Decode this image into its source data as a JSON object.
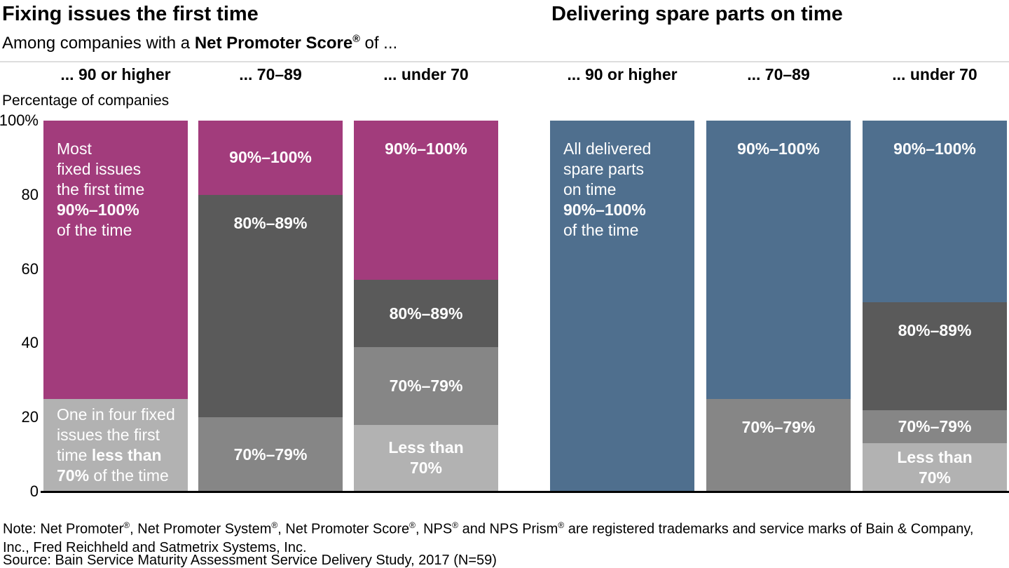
{
  "titles": {
    "left": "Fixing issues the first time",
    "right": "Delivering spare parts on time"
  },
  "subtitle_runs": [
    {
      "t": "Among companies with a "
    },
    {
      "t": "Net Promoter Score",
      "b": true
    },
    {
      "t": "®",
      "b": true,
      "sup": true
    },
    {
      "t": " of ..."
    }
  ],
  "ylabel": "Percentage of companies",
  "colors": {
    "magenta": "#A23C7C",
    "blue": "#4F6F8E",
    "dark_gray": "#5A5A5A",
    "medium_gray": "#868686",
    "light_gray": "#B2B2B2",
    "header_rule": "#DDDDDD",
    "axis": "#000000",
    "segment_text": "#FFFFFF"
  },
  "chart_data": {
    "type": "stacked-bar",
    "unit": "percent of companies",
    "ylim": [
      0,
      100
    ],
    "grid": false,
    "yticks": [
      {
        "value": 100,
        "label": "100%"
      },
      {
        "value": 80,
        "label": "80"
      },
      {
        "value": 60,
        "label": "60"
      },
      {
        "value": 40,
        "label": "40"
      },
      {
        "value": 20,
        "label": "20"
      },
      {
        "value": 0,
        "label": "0"
      }
    ],
    "panels": [
      {
        "title": "Fixing issues the first time",
        "bars": [
          {
            "category": "... 90 or higher",
            "segments": [
              {
                "name": "90%–100%",
                "value": 75,
                "color": "magenta",
                "style": "story",
                "runs": [
                  {
                    "t": "Most\nfixed issues\nthe first time\n"
                  },
                  {
                    "t": "90%–100%",
                    "b": true
                  },
                  {
                    "t": "\nof the time"
                  }
                ]
              },
              {
                "name": "Less than 70%",
                "value": 25,
                "color": "light_gray",
                "style": "story-center",
                "runs": [
                  {
                    "t": "One in four fixed\nissues the first\ntime "
                  },
                  {
                    "t": "less than",
                    "b": true
                  },
                  {
                    "t": "\n"
                  },
                  {
                    "t": "70%",
                    "b": true
                  },
                  {
                    "t": " of the time"
                  }
                ]
              }
            ]
          },
          {
            "category": "... 70–89",
            "segments": [
              {
                "name": "90%–100%",
                "value": 20,
                "color": "magenta",
                "style": "range",
                "runs": [
                  {
                    "t": "90%–100%",
                    "b": true
                  }
                ]
              },
              {
                "name": "80%–89%",
                "value": 60,
                "color": "dark_gray",
                "style": "range",
                "runs": [
                  {
                    "t": "80%–89%",
                    "b": true
                  }
                ]
              },
              {
                "name": "70%–79%",
                "value": 20,
                "color": "medium_gray",
                "style": "range",
                "runs": [
                  {
                    "t": "70%–79%",
                    "b": true
                  }
                ]
              }
            ]
          },
          {
            "category": "... under 70",
            "segments": [
              {
                "name": "90%–100%",
                "value": 43,
                "color": "magenta",
                "style": "range",
                "runs": [
                  {
                    "t": "90%–100%",
                    "b": true
                  }
                ]
              },
              {
                "name": "80%–89%",
                "value": 18,
                "color": "dark_gray",
                "style": "range",
                "runs": [
                  {
                    "t": "80%–89%",
                    "b": true
                  }
                ]
              },
              {
                "name": "70%–79%",
                "value": 21,
                "color": "medium_gray",
                "style": "range",
                "runs": [
                  {
                    "t": "70%–79%",
                    "b": true
                  }
                ]
              },
              {
                "name": "Less than 70%",
                "value": 18,
                "color": "light_gray",
                "style": "range",
                "runs": [
                  {
                    "t": "Less than\n70%",
                    "b": true
                  }
                ]
              }
            ]
          }
        ]
      },
      {
        "title": "Delivering spare parts on time",
        "bars": [
          {
            "category": "... 90 or higher",
            "segments": [
              {
                "name": "90%–100%",
                "value": 100,
                "color": "blue",
                "style": "story",
                "runs": [
                  {
                    "t": "All delivered\nspare parts\non time\n"
                  },
                  {
                    "t": "90%–100%",
                    "b": true
                  },
                  {
                    "t": "\nof the time"
                  }
                ]
              }
            ]
          },
          {
            "category": "... 70–89",
            "segments": [
              {
                "name": "90%–100%",
                "value": 75,
                "color": "blue",
                "style": "range",
                "runs": [
                  {
                    "t": "90%–100%",
                    "b": true
                  }
                ]
              },
              {
                "name": "70%–79%",
                "value": 25,
                "color": "medium_gray",
                "style": "range",
                "runs": [
                  {
                    "t": "70%–79%",
                    "b": true
                  }
                ]
              }
            ]
          },
          {
            "category": "... under 70",
            "segments": [
              {
                "name": "90%–100%",
                "value": 49,
                "color": "blue",
                "style": "range",
                "runs": [
                  {
                    "t": "90%–100%",
                    "b": true
                  }
                ]
              },
              {
                "name": "80%–89%",
                "value": 29,
                "color": "dark_gray",
                "style": "range",
                "runs": [
                  {
                    "t": "80%–89%",
                    "b": true
                  }
                ]
              },
              {
                "name": "70%–79%",
                "value": 9,
                "color": "medium_gray",
                "style": "range",
                "runs": [
                  {
                    "t": "70%–79%",
                    "b": true
                  }
                ]
              },
              {
                "name": "Less than 70%",
                "value": 13,
                "color": "light_gray",
                "style": "range",
                "runs": [
                  {
                    "t": "Less than\n70%",
                    "b": true
                  }
                ]
              }
            ]
          }
        ]
      }
    ]
  },
  "footer": {
    "note_runs": [
      {
        "t": "Note: Net Promoter"
      },
      {
        "t": "®",
        "sup": true
      },
      {
        "t": ", Net Promoter System"
      },
      {
        "t": "®",
        "sup": true
      },
      {
        "t": ", Net Promoter Score"
      },
      {
        "t": "®",
        "sup": true
      },
      {
        "t": ", NPS"
      },
      {
        "t": "®",
        "sup": true
      },
      {
        "t": " and NPS Prism"
      },
      {
        "t": "®",
        "sup": true
      },
      {
        "t": " are registered trademarks and service marks of Bain & Company,\nInc., Fred Reichheld and Satmetrix Systems, Inc."
      }
    ],
    "source": "Source: Bain Service Maturity Assessment Service Delivery Study, 2017 (N=59)"
  }
}
